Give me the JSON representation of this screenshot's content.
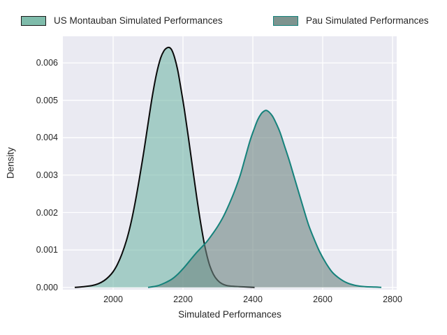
{
  "legend": {
    "items": [
      {
        "label": "US Montauban Simulated Performances",
        "swatch_fill": "#7fbcab",
        "swatch_border": "#1a1a1a"
      },
      {
        "label": "Pau Simulated Performances",
        "swatch_fill": "#7e948f",
        "swatch_border": "#15827b"
      }
    ]
  },
  "axes": {
    "xlabel": "Simulated Performances",
    "ylabel": "Density",
    "x_ticks": [
      "2000",
      "2200",
      "2400",
      "2600",
      "2800"
    ],
    "x_tick_values": [
      2000,
      2200,
      2400,
      2600,
      2800
    ],
    "y_ticks": [
      "0.000",
      "0.001",
      "0.002",
      "0.003",
      "0.004",
      "0.005",
      "0.006"
    ],
    "y_tick_values": [
      0,
      0.001,
      0.002,
      0.003,
      0.004,
      0.005,
      0.006
    ]
  },
  "colors": {
    "figure_bg": "#ffffff",
    "plot_bg": "#eaeaf2",
    "grid": "#ffffff",
    "text": "#262626",
    "montauban_line": "#0a0a0a",
    "montauban_fill": "rgba(105,179,162,0.55)",
    "pau_line": "#15827b",
    "pau_fill": "rgba(110,134,130,0.6)"
  },
  "chart_data": {
    "type": "area",
    "title": "",
    "xlabel": "Simulated Performances",
    "ylabel": "Density",
    "xlim": [
      1856,
      2812
    ],
    "ylim": [
      -6e-05,
      0.00671
    ],
    "grid": true,
    "legend_position": "top",
    "series": [
      {
        "name": "US Montauban Simulated Performances",
        "line_color": "#0a0a0a",
        "fill_color": "rgba(105,179,162,0.55)",
        "peak": {
          "x": 2161,
          "density": 0.00641
        },
        "x": [
          1890,
          1916,
          1940,
          1958,
          1974,
          1988,
          2000,
          2012,
          2025,
          2038,
          2050,
          2062,
          2075,
          2088,
          2100,
          2112,
          2124,
          2136,
          2146,
          2154,
          2161,
          2168,
          2176,
          2185,
          2194,
          2204,
          2215,
          2227,
          2239,
          2251,
          2263,
          2275,
          2287,
          2299,
          2311,
          2325,
          2343,
          2363,
          2385,
          2405
        ],
        "density": [
          0,
          2e-05,
          5e-05,
          0.0001,
          0.00018,
          0.00029,
          0.00042,
          0.00061,
          0.00089,
          0.00125,
          0.00168,
          0.00222,
          0.0029,
          0.00364,
          0.00438,
          0.0051,
          0.0057,
          0.00613,
          0.00633,
          0.0064,
          0.00641,
          0.00634,
          0.00614,
          0.0058,
          0.00532,
          0.00475,
          0.00404,
          0.00323,
          0.00243,
          0.0017,
          0.00108,
          0.00063,
          0.00035,
          0.00019,
          0.0001,
          5e-05,
          3e-05,
          2e-05,
          1e-05,
          0
        ]
      },
      {
        "name": "Pau Simulated Performances",
        "line_color": "#15827b",
        "fill_color": "rgba(110,134,130,0.6)",
        "peak": {
          "x": 2438,
          "density": 0.00473
        },
        "x": [
          2100,
          2126,
          2148,
          2168,
          2186,
          2204,
          2220,
          2236,
          2252,
          2268,
          2284,
          2300,
          2316,
          2332,
          2348,
          2364,
          2378,
          2392,
          2404,
          2414,
          2424,
          2432,
          2438,
          2446,
          2456,
          2466,
          2478,
          2490,
          2504,
          2518,
          2532,
          2546,
          2560,
          2576,
          2592,
          2610,
          2628,
          2648,
          2670,
          2695,
          2722,
          2750,
          2768
        ],
        "density": [
          0,
          4e-05,
          0.00012,
          0.00022,
          0.00036,
          0.00054,
          0.00072,
          0.0009,
          0.00106,
          0.00122,
          0.00142,
          0.00164,
          0.0019,
          0.00222,
          0.00258,
          0.003,
          0.00346,
          0.00392,
          0.00424,
          0.00448,
          0.00464,
          0.00471,
          0.00473,
          0.00469,
          0.00458,
          0.0044,
          0.00414,
          0.0038,
          0.0034,
          0.00296,
          0.00252,
          0.00208,
          0.00166,
          0.00128,
          0.00094,
          0.00064,
          0.0004,
          0.00024,
          0.00012,
          5e-05,
          2e-05,
          1e-05,
          0
        ]
      }
    ]
  }
}
